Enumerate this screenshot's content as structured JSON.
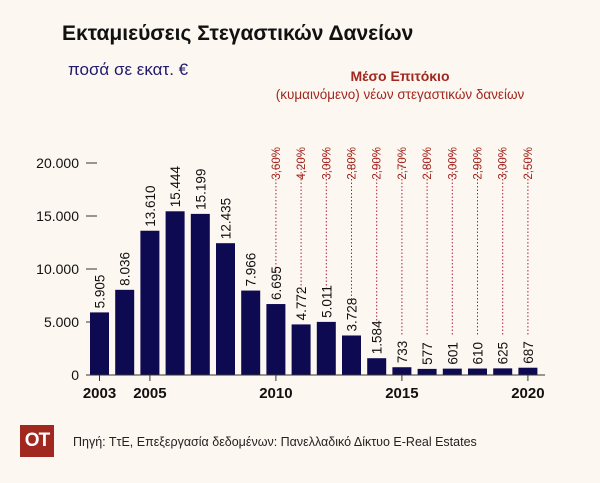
{
  "header": {
    "title": "Εκταμιεύσεις Στεγαστικών Δανείων",
    "subtitle": "ποσά σε εκατ. €"
  },
  "rate_legend": {
    "title": "Μέσο Επιτόκιο",
    "subtitle": "(κυμαινόμενο) νέων στεγαστικών δανείων"
  },
  "footer": {
    "logo": "OT",
    "source": "Πηγή: ΤτΕ, Επεξεργασία δεδομένων: Πανελλαδικό Δίκτυο E-Real Estates"
  },
  "colors": {
    "bar": "#0e0a52",
    "rate_line": "#b0243c",
    "rate_text": "#a0281e",
    "axis_text": "#111111"
  },
  "chart_data": {
    "type": "bar",
    "x": [
      2003,
      2004,
      2005,
      2006,
      2007,
      2008,
      2009,
      2010,
      2011,
      2012,
      2013,
      2014,
      2015,
      2016,
      2017,
      2018,
      2019,
      2020
    ],
    "values": [
      5905,
      8036,
      13610,
      15444,
      15199,
      12435,
      7966,
      6695,
      4772,
      5011,
      3728,
      1584,
      733,
      577,
      601,
      610,
      625,
      687
    ],
    "value_labels": [
      "5.905",
      "8.036",
      "13.610",
      "15.444",
      "15.199",
      "12.435",
      "7.966",
      "6.695",
      "4.772",
      "5.011",
      "3.728",
      "1.584",
      "733",
      "577",
      "601",
      "610",
      "625",
      "687"
    ],
    "x_tick_labels": [
      {
        "year": 2003,
        "label": "2003"
      },
      {
        "year": 2005,
        "label": "2005"
      },
      {
        "year": 2010,
        "label": "2010"
      },
      {
        "year": 2015,
        "label": "2015"
      },
      {
        "year": 2020,
        "label": "2020"
      }
    ],
    "y_ticks": [
      {
        "value": 0,
        "label": "0"
      },
      {
        "value": 5000,
        "label": "5.000"
      },
      {
        "value": 10000,
        "label": "10.000"
      },
      {
        "value": 15000,
        "label": "15.000"
      },
      {
        "value": 20000,
        "label": "20.000"
      }
    ],
    "ylim": [
      0,
      20000
    ],
    "interest_rates": [
      {
        "year": 2010,
        "label": "3,60%"
      },
      {
        "year": 2011,
        "label": "4,20%"
      },
      {
        "year": 2012,
        "label": "3,00%"
      },
      {
        "year": 2013,
        "label": "2,80%"
      },
      {
        "year": 2014,
        "label": "2,90%"
      },
      {
        "year": 2015,
        "label": "2,70%"
      },
      {
        "year": 2016,
        "label": "2,80%"
      },
      {
        "year": 2017,
        "label": "3,00%"
      },
      {
        "year": 2018,
        "label": "2,90%"
      },
      {
        "year": 2019,
        "label": "3,00%"
      },
      {
        "year": 2020,
        "label": "2,50%"
      }
    ]
  }
}
